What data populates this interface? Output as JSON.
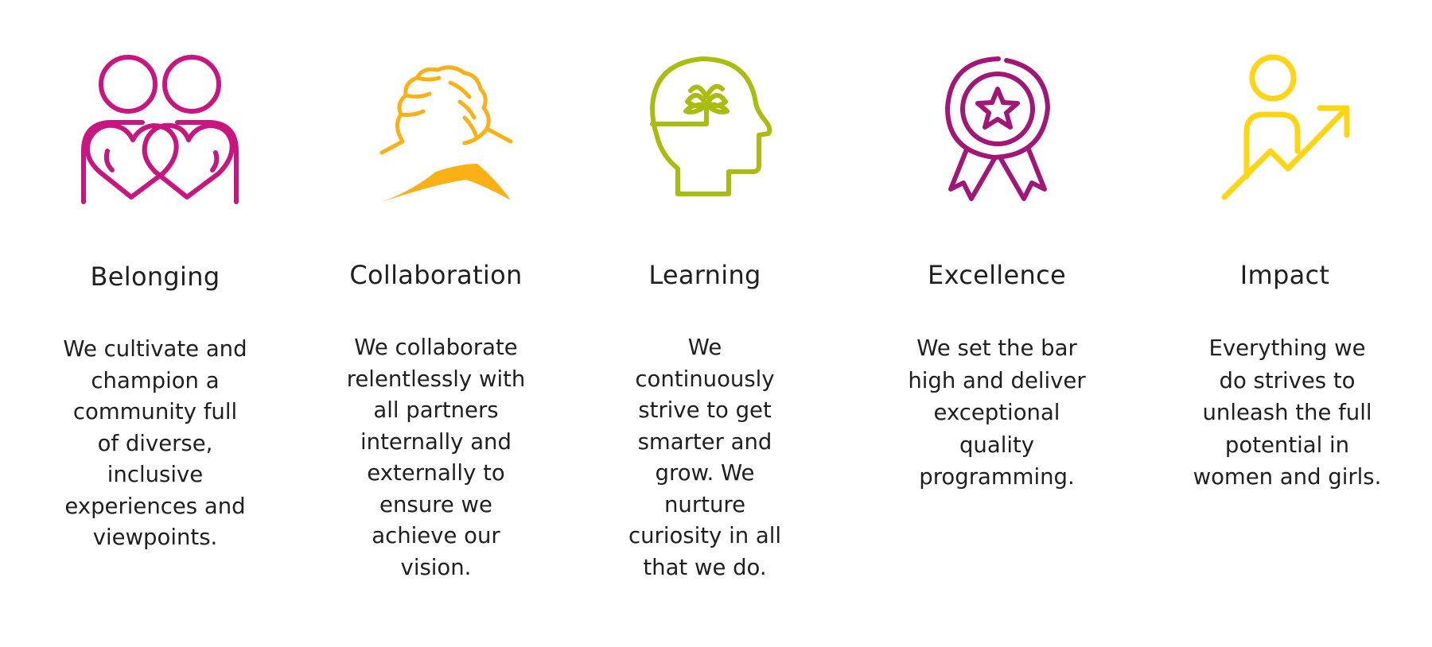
{
  "colors": {
    "belonging": "#c9157f",
    "collaboration": "#fbb116",
    "learning": "#aabd0e",
    "excellence": "#a11677",
    "impact": "#fed515"
  },
  "values": [
    {
      "id": "belonging",
      "icon": "two-hearts-people-icon",
      "title": "Belonging",
      "description": "We cultivate and champion a community full of diverse, inclusive experiences and viewpoints."
    },
    {
      "id": "collaboration",
      "icon": "handshake-icon",
      "title": "Collaboration",
      "description": "We collaborate relentlessly with all partners internally and externally to ensure we achieve our vision."
    },
    {
      "id": "learning",
      "icon": "head-with-sprout-icon",
      "title": "Learning",
      "description": "We continuously strive to get smarter and grow. We nurture curiosity in all that we do."
    },
    {
      "id": "excellence",
      "icon": "award-badge-star-icon",
      "title": "Excellence",
      "description": "We set the bar high and deliver exceptional quality programming."
    },
    {
      "id": "impact",
      "icon": "person-growth-arrow-icon",
      "title": "Impact",
      "description": "Everything we do strives to unleash the full potential in women and girls."
    }
  ]
}
